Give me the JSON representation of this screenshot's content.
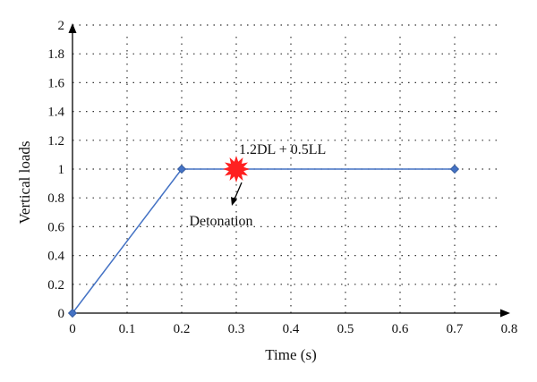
{
  "chart_data": {
    "type": "line",
    "xlabel": "Time (s)",
    "ylabel": "Vertical loads",
    "xlim": [
      0,
      0.8
    ],
    "ylim": [
      0,
      2
    ],
    "xticks": [
      "0",
      "0.1",
      "0.2",
      "0.3",
      "0.4",
      "0.5",
      "0.6",
      "0.7",
      "0.8"
    ],
    "yticks": [
      "0",
      "0.2",
      "0.4",
      "0.6",
      "0.8",
      "1",
      "1.2",
      "1.4",
      "1.6",
      "1.8",
      "2"
    ],
    "grid": true,
    "series": [
      {
        "x": [
          0,
          0.2,
          0.7
        ],
        "y": [
          0,
          1,
          1
        ],
        "color": "#4472C4"
      }
    ],
    "annotations": {
      "load_combo": "1.2DL + 0.5LL",
      "detonation": "Detonation",
      "detonation_point": {
        "x": 0.3,
        "y": 1
      },
      "burst_color": "#FF2020"
    }
  }
}
